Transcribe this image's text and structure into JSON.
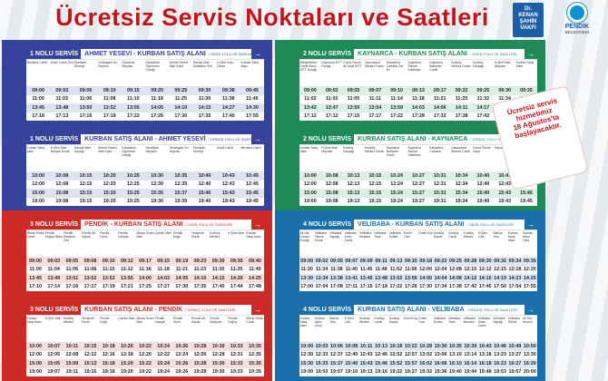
{
  "page": {
    "title": "Ücretsiz Servis Noktaları ve Saatleri",
    "logo_left": [
      "Dr.",
      "KENAN",
      "ŞAHİN",
      "VAKFI"
    ],
    "logo_right": {
      "name": "PENDİK",
      "sub": "BELEDİYESİ"
    },
    "notice": [
      "Ücretsiz servis",
      "hizmetimiz",
      "18 Ağustos'ta",
      "başlayacaktır."
    ]
  },
  "services": [
    {
      "number": "1 NOLU",
      "cards": [
        {
          "svc": "1 NOLU SERVİS",
          "route": "AHMET YESEVİ - KURBAN SATIŞ ALANI",
          "dir": "/ GİDİŞ YOLU VE SAATLERİ",
          "stops": [
            "Mevlana Camii",
            "Keçili Camii Önü",
            "Esenyalı Ebmeyi",
            "Orhangazi Su Deposu",
            "Güzelyalı Meydan",
            "Karadeniz Öğretmen Durağı",
            "Ahmet Yesevi Mah Kışla",
            "Sanayi Mah Muhtarlık Önü",
            "H.Şirin Kuru Pazar",
            "Kurban Satış Alanı"
          ],
          "times": [
            [
              "09:00",
              "09:03",
              "09:06",
              "09:10",
              "09:15",
              "09:20",
              "09:25",
              "09:30",
              "09:38",
              "09:45"
            ],
            [
              "11:00",
              "11:03",
              "11:06",
              "11:08",
              "11:10",
              "11:18",
              "11:25",
              "11:30",
              "11:38",
              "11:40"
            ],
            [
              "13:45",
              "13:48",
              "13:50",
              "13:52",
              "13:55",
              "14:05",
              "14:10",
              "14:15",
              "14:27",
              "14:30"
            ],
            [
              "17:18",
              "17:13",
              "17:16",
              "17:19",
              "17:22",
              "17:26",
              "17:30",
              "17:35",
              "17:40",
              "17:55"
            ]
          ]
        },
        {
          "svc": "1 NOLU SERVİS",
          "route": "KURBAN SATIŞ ALANI - AHMET YESEVİ",
          "dir": "/ DÖNÜŞ YOLU VE SAATLERİ",
          "stops": [
            "Kurban Satış Alanı",
            "H.Şirin Mah Bahçeli Durak",
            "Sanayi Mah Sapağı",
            "Ahmet Yesevi Mah Kışla",
            "Karadeniz Öğretmen Durağı",
            "Güzelyalı Meydan",
            "Orhangazi Su Deposu",
            "Esenyalı Ebmeyi",
            "Keçili Camii",
            "Mevlana Camii"
          ],
          "times": [
            [
              "10:00",
              "10:08",
              "10:15",
              "10:20",
              "10:25",
              "10:30",
              "10:35",
              "10:40",
              "10:43",
              "10:45"
            ],
            [
              "12:00",
              "12:08",
              "12:15",
              "12:20",
              "12:25",
              "12:30",
              "12:35",
              "12:40",
              "12:43",
              "12:45"
            ],
            [
              "15:00",
              "15:08",
              "15:15",
              "15:20",
              "15:25",
              "15:35",
              "15:37",
              "15:40",
              "15:43",
              "15:45"
            ],
            [
              "19:00",
              "19:08",
              "19:15",
              "19:20",
              "19:25",
              "19:30",
              "19:35",
              "19:40",
              "19:43",
              "19:45"
            ]
          ]
        }
      ]
    },
    {
      "number": "2 NOLU",
      "cards": [
        {
          "svc": "2 NOLU SERVİS",
          "route": "KAYNARCA - KURBAN SATIŞ ALANI",
          "dir": "/ GİDİŞ YOLU VE SAATLERİ",
          "stops": [
            "Bahçelievler Camii Kireçi İETT Durağı",
            "Kaynarca İETT Durağı",
            "Cuma Pazarı ilk Geçit İETT",
            "Çamçeşme Merkez Camii",
            "Karadeniz Caddesi Zaf Ev",
            "Kaynarca Ekmek Fabrikası",
            "Kaynarca Bahçeler Camii",
            "Kurtköy Merkez Durak",
            "Kurtköy Kavşağı",
            "H.Şirin Mah Meydan",
            "Kurban Satış Alanı"
          ],
          "times": [
            [
              "09:00",
              "09:02",
              "09:05",
              "09:07",
              "09:10",
              "09:13",
              "09:17",
              "09:22",
              "09:25",
              "09:30",
              "09:35"
            ],
            [
              "11:02",
              "11:02",
              "11:05",
              "11:11",
              "11:14",
              "11:18",
              "11:21",
              "11:25",
              "11:32",
              "11:34",
              "11:35"
            ],
            [
              "13:42",
              "13:47",
              "13:50",
              "13:54",
              "13:59",
              "14:03",
              "14:06",
              "14:11",
              "14:17",
              "14:27",
              "14:30"
            ],
            [
              "17:12",
              "17:12",
              "17:15",
              "17:17",
              "17:22",
              "17:28",
              "17:32",
              "17:38",
              "17:42",
              "17:48",
              "17:50"
            ]
          ]
        },
        {
          "svc": "2 NOLU SERVİS",
          "route": "KURBAN SATIŞ ALANI - KAYNARCA",
          "dir": "/ DÖNÜŞ YOLU VE SAATLERİ",
          "stops": [
            "Kurban Satış Alanı",
            "H.Şirin Mah Meydan",
            "Kurtköy Kavşağı",
            "Kurtköy Merkez Durak",
            "Kaynarca Bahçeler Camii",
            "Kaynarca Ekmek Fabrikası",
            "Karadeniz Caddesi",
            "Çamçeşme Merkez Camii",
            "Cuma Pazarı Geçit",
            "Kaynarca İETT",
            "Bahçelievler Camii"
          ],
          "times": [
            [
              "10:00",
              "10:08",
              "10:13",
              "10:15",
              "10:24",
              "10:27",
              "10:31",
              "10:34",
              "10:40",
              "10:43",
              "10:45"
            ],
            [
              "12:00",
              "12:08",
              "12:13",
              "12:15",
              "12:24",
              "12:27",
              "12:31",
              "12:34",
              "12:40",
              "12:43",
              "12:45"
            ],
            [
              "15:00",
              "15:08",
              "15:13",
              "15:15",
              "15:24",
              "15:27",
              "15:31",
              "15:34",
              "15:40",
              "15:43",
              "15:45"
            ],
            [
              "19:00",
              "19:08",
              "19:13",
              "19:15",
              "19:24",
              "19:27",
              "19:31",
              "19:34",
              "19:40",
              "19:43",
              "19:45"
            ]
          ]
        }
      ]
    },
    {
      "number": "3 NOLU",
      "cards": [
        {
          "svc": "3 NOLU SERVİS",
          "route": "PENDİK - KURBAN SATIŞ ALANI",
          "dir": "/ GİDİŞ YOLU VE SAATLERİ",
          "stops": [
            "Mimar Sinan Camii",
            "Pendik Doğuş Sitesi",
            "Pendik Stadyum Önü",
            "Pendik Alt Sapak",
            "Pendik Girne",
            "Pendik Kavşak",
            "Mimar Sinan Mah",
            "Çamlık Mah",
            "Pendik Doğu",
            "Yenişehir Pazar",
            "Kurtköy Merkez",
            "H.Şirin Mah",
            "Kurban Satış Alanı"
          ],
          "times": [
            [
              "09:00",
              "09:03",
              "09:05",
              "09:08",
              "09:10",
              "09:12",
              "09:17",
              "09:15",
              "09:19",
              "09:23",
              "09:30",
              "09:35",
              "09:40"
            ],
            [
              "11:00",
              "11:04",
              "11:06",
              "11:08",
              "11:10",
              "11:12",
              "11:16",
              "11:18",
              "11:21",
              "11:23",
              "11:30",
              "11:35",
              "11:40"
            ],
            [
              "13:45",
              "13:49",
              "13:51",
              "13:52",
              "13:53",
              "13:55",
              "14:00",
              "14:03",
              "14:05",
              "14:10",
              "14:15",
              "14:20",
              "14:25"
            ],
            [
              "17:10",
              "17:14",
              "17:16",
              "17:17",
              "17:19",
              "17:21",
              "17:25",
              "17:27",
              "17:30",
              "17:35",
              "17:40",
              "17:44",
              "17:48"
            ]
          ]
        },
        {
          "svc": "3 NOLU SERVİS",
          "route": "KURBAN SATIŞ ALANI - PENDİK",
          "dir": "/ DÖNÜŞ YOLU VE SAATLERİ",
          "stops": [
            "Kurban Satış Alanı",
            "H.Şirin Mah",
            "Kurtköy Merkez",
            "Yenişehir Pazar",
            "Pendik Doğu",
            "Çamlık Mah",
            "Mimar Sinan Mah",
            "Pendik Kavşak",
            "Pendik Girne",
            "Pendik Alt Sapak",
            "Pendik Stadyum",
            "Pendik Doğuş",
            "Mimar Sinan Camii"
          ],
          "times": [
            [
              "10:00",
              "10:07",
              "10:11",
              "10:15",
              "10:18",
              "10:20",
              "10:22",
              "10:24",
              "10:26",
              "10:28",
              "10:30",
              "10:33",
              "10:35"
            ],
            [
              "12:00",
              "12:05",
              "12:08",
              "12:12",
              "12:16",
              "12:18",
              "12:20",
              "12:22",
              "12:24",
              "12:26",
              "12:28",
              "12:31",
              "12:35"
            ],
            [
              "15:00",
              "15:05",
              "15:09",
              "15:13",
              "15:18",
              "15:20",
              "15:22",
              "15:24",
              "15:26",
              "15:28",
              "15:30",
              "15:33",
              "15:35"
            ],
            [
              "19:00",
              "19:07",
              "19:11",
              "19:15",
              "19:18",
              "19:20",
              "19:22",
              "19:24",
              "19:26",
              "19:28",
              "19:30",
              "19:33",
              "19:35"
            ]
          ]
        }
      ]
    },
    {
      "number": "4 NOLU",
      "cards": [
        {
          "svc": "4 NOLU SERVİS",
          "route": "VELİBABA - KURBAN SATIŞ ALANI",
          "dir": "/ GİDİŞ YOLU VE SAATLERİ",
          "stops": [
            "Ali Ulvi Kurucu Durağı",
            "Velibaba Teknik Durak",
            "Velibaba Sapağı",
            "Velibaba Kuttu Camii",
            "Velibaba Meydan",
            "Velibaba Tepe",
            "Velibaba Sultan",
            "Emirli Cad",
            "Emirli Köy",
            "Kurtköy Sapak",
            "Kurtköy Camii",
            "Kurtköy Merkez",
            "H.Şirin Cad",
            "Ballıca Yolu",
            "Kurban Satış Alanı",
            "Kurban Alanı Giriş"
          ],
          "times": [
            [
              "09:00",
              "09:02",
              "09:05",
              "09:07",
              "09:09",
              "09:11",
              "09:13",
              "09:15",
              "09:18",
              "09:22",
              "09:25",
              "09:28",
              "09:30",
              "09:32",
              "09:34",
              "09:35"
            ],
            [
              "11:30",
              "11:34",
              "11:38",
              "11:40",
              "11:45",
              "11:48",
              "11:52",
              "11:56",
              "12:00",
              "12:04",
              "12:08",
              "12:10",
              "12:12",
              "12:15",
              "12:18",
              "12:20"
            ],
            [
              "13:30",
              "13:34",
              "13:38",
              "13:41",
              "13:45",
              "13:48",
              "13:52",
              "13:56",
              "14:00",
              "14:04",
              "14:08",
              "14:12",
              "14:15",
              "14:19",
              "14:23",
              "14:25"
            ],
            [
              "17:00",
              "17:04",
              "17:08",
              "17:11",
              "17:15",
              "17:18",
              "17:22",
              "17:26",
              "17:30",
              "17:34",
              "17:38",
              "17:42",
              "17:45",
              "17:50",
              "17:54",
              "17:55"
            ]
          ]
        },
        {
          "svc": "4 NOLU SERVİS",
          "route": "KURBAN SATIŞ ALANI - VELİBABA",
          "dir": "/ DÖNÜŞ YOLU VE SAATLERİ",
          "stops": [
            "Kurban Satış Alanı",
            "Kurban Alanı Çıkış",
            "Ballıca Yolu",
            "H.Şirin Cad",
            "Kurtköy Merkez",
            "Kurtköy Camii",
            "Kurtköy Sapak",
            "Emirli Köy",
            "Emirli Cad",
            "Velibaba Sultan",
            "Velibaba Tepe",
            "Velibaba Meydan",
            "Velibaba Kuttu Camii",
            "Velibaba Sapağı",
            "Velibaba Teknik",
            "Ali Ulvi Kurucu"
          ],
          "times": [
            [
              "10:00",
              "10:03",
              "10:06",
              "10:08",
              "10:11",
              "10:13",
              "10:18",
              "10:22",
              "10:28",
              "10:30",
              "10:35",
              "10:39",
              "10:43",
              "10:46",
              "10:49",
              "10:50"
            ],
            [
              "12:30",
              "12:33",
              "12:37",
              "12:40",
              "12:43",
              "12:46",
              "12:52",
              "12:57",
              "13:02",
              "13:06",
              "13:10",
              "13:14",
              "13:18",
              "13:23",
              "13:27",
              "13:30"
            ],
            [
              "15:30",
              "15:33",
              "15:37",
              "15:40",
              "15:43",
              "15:46",
              "15:52",
              "15:57",
              "16:02",
              "16:06",
              "16:10",
              "16:14",
              "16:18",
              "16:23",
              "16:27",
              "16:30"
            ],
            [
              "19:00",
              "19:03",
              "19:07",
              "19:10",
              "19:13",
              "19:16",
              "19:22",
              "19:27",
              "19:32",
              "19:36",
              "19:40",
              "19:44",
              "19:48",
              "19:53",
              "19:57",
              "20:00"
            ]
          ]
        }
      ]
    }
  ]
}
